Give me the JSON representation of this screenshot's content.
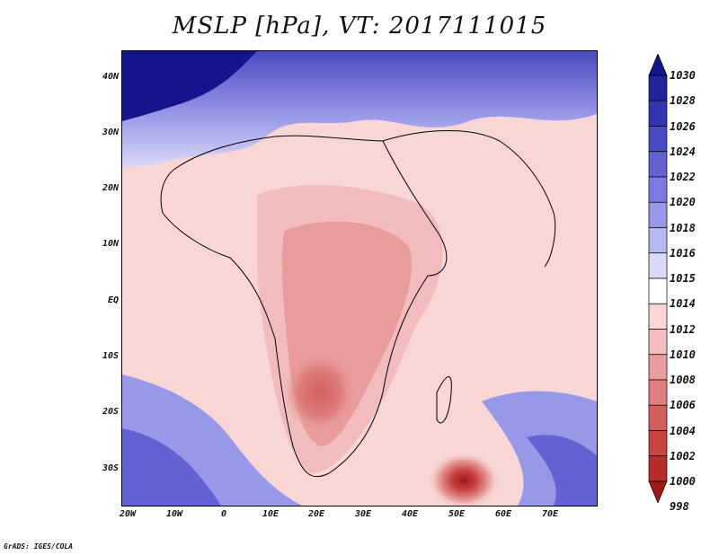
{
  "title": "MSLP [hPa], VT: 2017111015",
  "credit": "GrADS: IGES/COLA",
  "lat_labels": [
    "40N",
    "30N",
    "20N",
    "10N",
    "EQ",
    "10S",
    "20S",
    "30S"
  ],
  "lon_labels": [
    "20W",
    "10W",
    "0",
    "10E",
    "20E",
    "30E",
    "40E",
    "50E",
    "60E",
    "70E"
  ],
  "colorbar": {
    "labels": [
      "1030",
      "1028",
      "1026",
      "1024",
      "1022",
      "1020",
      "1018",
      "1016",
      "1015",
      "1014",
      "1012",
      "1010",
      "1008",
      "1006",
      "1004",
      "1002",
      "1000",
      "998"
    ],
    "colors": [
      "#14148c",
      "#23239e",
      "#3535b2",
      "#4a4ac4",
      "#6262d2",
      "#7b7bdf",
      "#9898e8",
      "#b8b8f1",
      "#dadaf8",
      "#ffffff",
      "#f8d6d6",
      "#f2bcbc",
      "#e89c9c",
      "#de7d7d",
      "#d45e5e",
      "#c94444",
      "#b82c2c",
      "#a01818"
    ]
  }
}
